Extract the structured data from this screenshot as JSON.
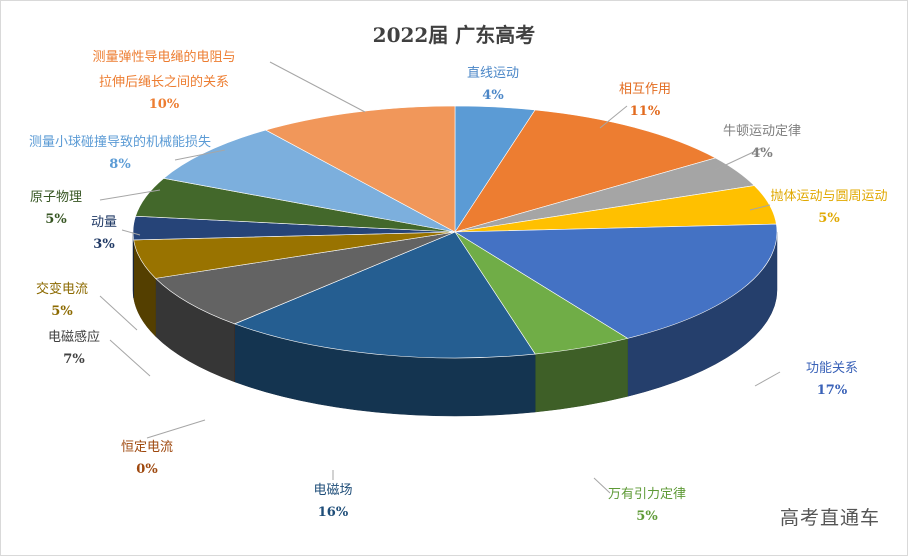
{
  "chart_data": {
    "type": "pie",
    "title": "2022届 广东高考",
    "slices": [
      {
        "label": "直线运动",
        "pct_label": "4%",
        "value": 4,
        "color": "#5b9bd5",
        "label_color": "#4a86c7"
      },
      {
        "label": "相互作用",
        "pct_label": "11%",
        "value": 11,
        "color": "#ed7d31",
        "label_color": "#e26b1f"
      },
      {
        "label": "牛顿运动定律",
        "pct_label": "4%",
        "value": 4,
        "color": "#a5a5a5",
        "label_color": "#7f7f7f"
      },
      {
        "label": "抛体运动与圆周运动",
        "pct_label": "5%",
        "value": 5,
        "color": "#ffc000",
        "label_color": "#e0a800"
      },
      {
        "label": "功能关系",
        "pct_label": "17%",
        "value": 17,
        "color": "#4472c4",
        "label_color": "#3a62b8"
      },
      {
        "label": "万有引力定律",
        "pct_label": "5%",
        "value": 5,
        "color": "#70ad47",
        "label_color": "#5e9a36"
      },
      {
        "label": "电磁场",
        "pct_label": "16%",
        "value": 16,
        "color": "#255e91",
        "label_color": "#1f4e79"
      },
      {
        "label": "恒定电流",
        "pct_label": "0%",
        "value": 0.01,
        "color": "#9e480e",
        "label_color": "#9e480e"
      },
      {
        "label": "电磁感应",
        "pct_label": "7%",
        "value": 7,
        "color": "#636363",
        "label_color": "#404040"
      },
      {
        "label": "交变电流",
        "pct_label": "5%",
        "value": 5,
        "color": "#997300",
        "label_color": "#8c6a00"
      },
      {
        "label": "动量",
        "pct_label": "3%",
        "value": 3,
        "color": "#264478",
        "label_color": "#1f3864"
      },
      {
        "label": "原子物理",
        "pct_label": "5%",
        "value": 5,
        "color": "#43682b",
        "label_color": "#375623"
      },
      {
        "label": "测量小球碰撞导致的机械能损失",
        "pct_label": "8%",
        "value": 8,
        "color": "#7cafdd",
        "label_color": "#5b9bd5"
      },
      {
        "label": "测量弹性导电绳的电阻与拉伸后绳长之间的关系",
        "pct_label": "10%",
        "value": 10,
        "color": "#f1975a",
        "label_color": "#ed7d31"
      }
    ]
  },
  "watermark": "高考直通车"
}
